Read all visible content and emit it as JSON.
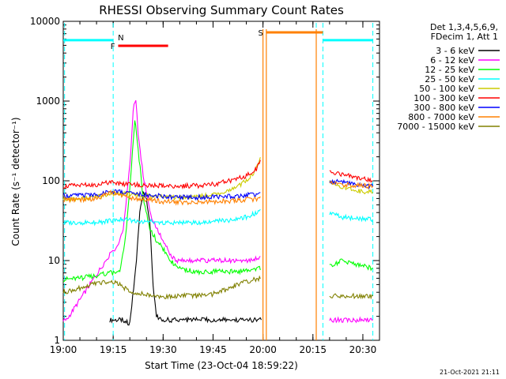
{
  "chart_data": {
    "type": "line",
    "title": "RHESSI Observing Summary Count Rates",
    "xlabel": "Start Time (23-Oct-04 18:59:22)",
    "ylabel": "Count Rate (s⁻¹ detector⁻¹)",
    "ylog": true,
    "ylim": [
      1,
      10000
    ],
    "xlim_min": [
      0,
      95
    ],
    "x_ticks": [
      {
        "min": 0,
        "label": "19:00"
      },
      {
        "min": 15,
        "label": "19:15"
      },
      {
        "min": 30,
        "label": "19:30"
      },
      {
        "min": 45,
        "label": "19:45"
      },
      {
        "min": 60,
        "label": "20:00"
      },
      {
        "min": 75,
        "label": "20:15"
      },
      {
        "min": 90,
        "label": "20:30"
      }
    ],
    "y_ticks": [
      {
        "value": 1,
        "label": "1"
      },
      {
        "value": 10,
        "label": "10"
      },
      {
        "value": 100,
        "label": "100"
      },
      {
        "value": 1000,
        "label": "1000"
      },
      {
        "value": 10000,
        "label": "10000"
      }
    ],
    "legend_header": [
      "Det 1,3,4,5,6,9,",
      "FDecim 1, Att 1"
    ],
    "legend_position": "right",
    "series": [
      {
        "name": "3 - 6 keV",
        "color": "#000000",
        "points": [
          [
            14,
            1.8
          ],
          [
            18,
            1.8
          ],
          [
            20,
            1.6
          ],
          [
            22,
            10
          ],
          [
            23,
            40
          ],
          [
            24,
            70
          ],
          [
            25,
            60
          ],
          [
            26,
            30
          ],
          [
            27,
            5
          ],
          [
            28,
            2
          ],
          [
            30,
            1.8
          ],
          [
            35,
            1.8
          ],
          [
            40,
            1.8
          ],
          [
            45,
            1.8
          ],
          [
            50,
            1.8
          ],
          [
            55,
            1.8
          ],
          [
            59.5,
            1.8
          ]
        ]
      },
      {
        "name": "6 - 12 keV",
        "color": "#ff00ff",
        "points": [
          [
            0,
            1.8
          ],
          [
            1,
            1.8
          ],
          [
            14,
            12
          ],
          [
            16,
            14
          ],
          [
            18,
            25
          ],
          [
            20,
            150
          ],
          [
            21,
            800
          ],
          [
            21.8,
            1000
          ],
          [
            22.5,
            400
          ],
          [
            24,
            120
          ],
          [
            26,
            40
          ],
          [
            28,
            25
          ],
          [
            30,
            18
          ],
          [
            32,
            12
          ],
          [
            34,
            10
          ],
          [
            40,
            10
          ],
          [
            45,
            10
          ],
          [
            50,
            10
          ],
          [
            55,
            10
          ],
          [
            59.5,
            11
          ],
          [
            80,
            1.8
          ],
          [
            84,
            1.8
          ],
          [
            86,
            1.8
          ],
          [
            88,
            1.8
          ],
          [
            90,
            1.8
          ],
          [
            93,
            1.8
          ]
        ]
      },
      {
        "name": "12 - 25 keV",
        "color": "#00ff00",
        "points": [
          [
            0,
            5.8
          ],
          [
            5,
            6
          ],
          [
            10,
            6.5
          ],
          [
            14,
            7
          ],
          [
            17,
            7
          ],
          [
            19,
            25
          ],
          [
            20.5,
            150
          ],
          [
            21.5,
            600
          ],
          [
            22.5,
            250
          ],
          [
            24,
            60
          ],
          [
            26,
            25
          ],
          [
            28,
            18
          ],
          [
            30,
            14
          ],
          [
            32,
            10
          ],
          [
            35,
            8
          ],
          [
            40,
            7.2
          ],
          [
            45,
            7.3
          ],
          [
            50,
            7.3
          ],
          [
            55,
            7.4
          ],
          [
            59.5,
            8
          ],
          [
            80,
            8.5
          ],
          [
            84,
            10
          ],
          [
            88,
            9
          ],
          [
            93,
            8
          ]
        ]
      },
      {
        "name": "25 - 50 keV",
        "color": "#00ffff",
        "points": [
          [
            0,
            30
          ],
          [
            5,
            30
          ],
          [
            10,
            30
          ],
          [
            15,
            32
          ],
          [
            17,
            33
          ],
          [
            20,
            32
          ],
          [
            25,
            31
          ],
          [
            30,
            30
          ],
          [
            35,
            30
          ],
          [
            40,
            30
          ],
          [
            45,
            31
          ],
          [
            50,
            32
          ],
          [
            55,
            35
          ],
          [
            58,
            40
          ],
          [
            59.5,
            45
          ],
          [
            80,
            40
          ],
          [
            84,
            35
          ],
          [
            88,
            34
          ],
          [
            93,
            33
          ]
        ]
      },
      {
        "name": "50 - 100 keV",
        "color": "#cccc00",
        "points": [
          [
            0,
            60
          ],
          [
            5,
            60
          ],
          [
            10,
            62
          ],
          [
            14,
            68
          ],
          [
            17,
            70
          ],
          [
            20,
            68
          ],
          [
            25,
            65
          ],
          [
            30,
            63
          ],
          [
            35,
            62
          ],
          [
            40,
            63
          ],
          [
            45,
            66
          ],
          [
            50,
            75
          ],
          [
            55,
            100
          ],
          [
            58,
            140
          ],
          [
            59.5,
            220
          ],
          [
            80,
            100
          ],
          [
            84,
            82
          ],
          [
            88,
            75
          ],
          [
            93,
            72
          ]
        ]
      },
      {
        "name": "100 - 300 keV",
        "color": "#ff0000",
        "points": [
          [
            0,
            85
          ],
          [
            5,
            88
          ],
          [
            10,
            90
          ],
          [
            14,
            95
          ],
          [
            17,
            92
          ],
          [
            20,
            90
          ],
          [
            25,
            88
          ],
          [
            30,
            86
          ],
          [
            35,
            86
          ],
          [
            40,
            87
          ],
          [
            45,
            90
          ],
          [
            50,
            100
          ],
          [
            55,
            115
          ],
          [
            58,
            140
          ],
          [
            59.5,
            200
          ],
          [
            80,
            130
          ],
          [
            84,
            120
          ],
          [
            88,
            110
          ],
          [
            93,
            100
          ]
        ]
      },
      {
        "name": "300 - 800 keV",
        "color": "#0000ff",
        "points": [
          [
            0,
            65
          ],
          [
            5,
            66
          ],
          [
            10,
            67
          ],
          [
            14,
            74
          ],
          [
            17,
            72
          ],
          [
            20,
            70
          ],
          [
            25,
            67
          ],
          [
            30,
            64
          ],
          [
            35,
            62
          ],
          [
            40,
            62
          ],
          [
            45,
            63
          ],
          [
            50,
            64
          ],
          [
            55,
            66
          ],
          [
            58,
            68
          ],
          [
            59.5,
            70
          ],
          [
            80,
            100
          ],
          [
            84,
            95
          ],
          [
            88,
            90
          ],
          [
            93,
            85
          ]
        ]
      },
      {
        "name": "800 - 7000 keV",
        "color": "#ff8000",
        "points": [
          [
            0,
            58
          ],
          [
            5,
            58
          ],
          [
            10,
            60
          ],
          [
            14,
            72
          ],
          [
            17,
            68
          ],
          [
            20,
            62
          ],
          [
            25,
            58
          ],
          [
            30,
            55
          ],
          [
            35,
            54
          ],
          [
            40,
            54
          ],
          [
            45,
            55
          ],
          [
            50,
            56
          ],
          [
            55,
            58
          ],
          [
            59.5,
            60
          ],
          [
            80,
            95
          ],
          [
            84,
            90
          ],
          [
            88,
            88
          ],
          [
            93,
            85
          ]
        ]
      },
      {
        "name": "7000 - 15000 keV",
        "color": "#808000",
        "points": [
          [
            0,
            4
          ],
          [
            5,
            4.5
          ],
          [
            10,
            5.2
          ],
          [
            14,
            5.5
          ],
          [
            17,
            5
          ],
          [
            20,
            4
          ],
          [
            25,
            3.8
          ],
          [
            30,
            3.5
          ],
          [
            35,
            3.6
          ],
          [
            40,
            3.6
          ],
          [
            45,
            3.8
          ],
          [
            50,
            4.5
          ],
          [
            55,
            5.5
          ],
          [
            59.5,
            6
          ],
          [
            80,
            3.6
          ],
          [
            84,
            3.6
          ],
          [
            88,
            3.6
          ],
          [
            93,
            3.6
          ]
        ]
      }
    ],
    "markers": [
      {
        "label": "N",
        "color": "#00ffff",
        "x_start": 15,
        "x_end": 15,
        "type": "flag"
      },
      {
        "label": "F",
        "color": "#ff0000",
        "x_start": 16.5,
        "x_end": 31.5,
        "type": "bar"
      },
      {
        "label": "S",
        "color": "#ff8000",
        "x_start": 61,
        "x_end": 78,
        "type": "bar"
      }
    ],
    "eclipse_lines": [
      {
        "min": 0.4
      },
      {
        "min": 15
      },
      {
        "min": 76
      },
      {
        "min": 78
      },
      {
        "min": 93
      }
    ],
    "eclipse_bars": [
      {
        "from": 0,
        "to": 15,
        "value": 5800
      },
      {
        "from": 78,
        "to": 93,
        "value": 5800
      }
    ],
    "saa_lines": [
      {
        "min": 60
      },
      {
        "min": 61
      },
      {
        "min": 76
      }
    ],
    "data_gaps": [
      {
        "from": 60,
        "to": 80
      }
    ],
    "footer": "21-Oct-2021 21:11"
  }
}
